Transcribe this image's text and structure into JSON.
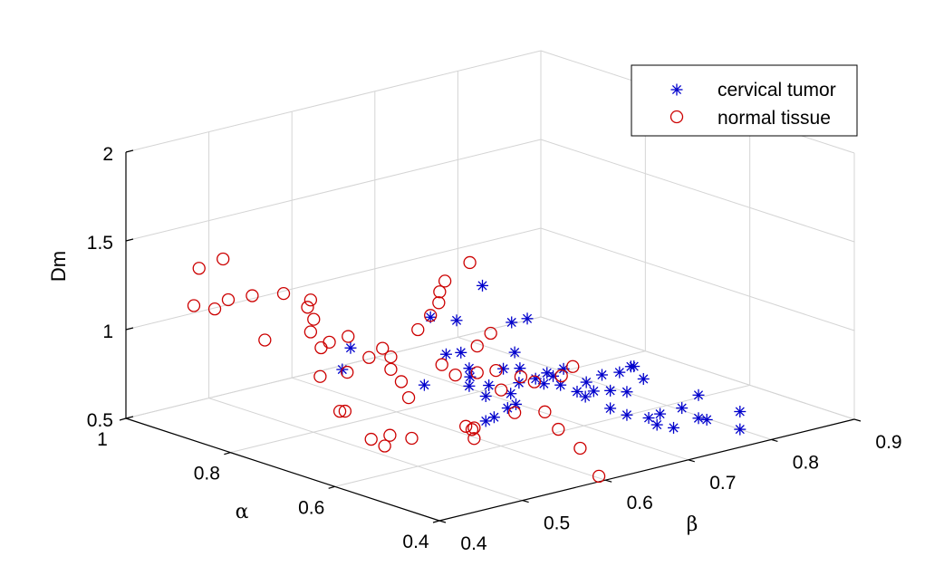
{
  "chart_data": {
    "type": "scatter",
    "title": "",
    "axes": {
      "x": {
        "label": "β",
        "lim": [
          0.4,
          0.9
        ],
        "ticks": [
          "0.4",
          "0.5",
          "0.6",
          "0.7",
          "0.8",
          "0.9"
        ]
      },
      "y": {
        "label": "α",
        "lim": [
          0.4,
          1.0
        ],
        "ticks": [
          "0.4",
          "0.6",
          "0.8",
          "1"
        ]
      },
      "z": {
        "label": "Dm",
        "lim": [
          0.5,
          2.0
        ],
        "ticks": [
          "0.5",
          "1",
          "1.5",
          "2"
        ]
      }
    },
    "grid": true,
    "legend_position": "top-right",
    "series": [
      {
        "name": "cervical tumor",
        "marker": "asterisk",
        "color": "#0000cc",
        "points": [
          [
            0.49,
            0.53,
            1.21
          ],
          [
            0.47,
            0.47,
            1.3
          ],
          [
            0.55,
            0.47,
            1.4
          ],
          [
            0.49,
            0.51,
            1.42
          ],
          [
            0.48,
            0.47,
            1.2
          ],
          [
            0.48,
            0.47,
            1.1
          ],
          [
            0.5,
            0.5,
            1.1
          ],
          [
            0.5,
            0.47,
            1.02
          ],
          [
            0.51,
            0.48,
            1.06
          ],
          [
            0.5,
            0.47,
            0.88
          ],
          [
            0.51,
            0.47,
            0.89
          ],
          [
            0.52,
            0.46,
            0.94
          ],
          [
            0.53,
            0.46,
            0.95
          ],
          [
            0.53,
            0.47,
            1.0
          ],
          [
            0.54,
            0.47,
            1.05
          ],
          [
            0.56,
            0.47,
            1.05
          ],
          [
            0.57,
            0.47,
            1.01
          ],
          [
            0.58,
            0.48,
            1.05
          ],
          [
            0.6,
            0.48,
            1.05
          ],
          [
            0.59,
            0.47,
            0.98
          ],
          [
            0.61,
            0.47,
            0.92
          ],
          [
            0.62,
            0.47,
            0.88
          ],
          [
            0.63,
            0.47,
            0.9
          ],
          [
            0.64,
            0.47,
            0.98
          ],
          [
            0.65,
            0.47,
            0.88
          ],
          [
            0.67,
            0.47,
            0.85
          ],
          [
            0.69,
            0.47,
            0.9
          ],
          [
            0.65,
            0.47,
            0.78
          ],
          [
            0.67,
            0.47,
            0.72
          ],
          [
            0.69,
            0.46,
            0.69
          ],
          [
            0.71,
            0.47,
            0.68
          ],
          [
            0.7,
            0.46,
            0.64
          ],
          [
            0.72,
            0.46,
            0.6
          ],
          [
            0.73,
            0.46,
            0.7
          ],
          [
            0.75,
            0.46,
            0.75
          ],
          [
            0.75,
            0.46,
            0.62
          ],
          [
            0.76,
            0.46,
            0.6
          ],
          [
            0.8,
            0.46,
            0.6
          ],
          [
            0.8,
            0.46,
            0.5
          ],
          [
            0.68,
            0.5,
            0.92
          ],
          [
            0.7,
            0.51,
            0.92
          ],
          [
            0.71,
            0.52,
            0.9
          ],
          [
            0.64,
            0.5,
            0.91
          ],
          [
            0.6,
            0.5,
            0.99
          ],
          [
            0.56,
            0.5,
            1.08
          ],
          [
            0.54,
            0.5,
            1.1
          ],
          [
            0.56,
            0.51,
            1.16
          ],
          [
            0.55,
            0.5,
            1.35
          ],
          [
            0.54,
            0.54,
            1.53
          ],
          [
            0.49,
            0.56,
            1.39
          ],
          [
            0.4,
            0.57,
            1.31
          ],
          [
            0.39,
            0.57,
            1.2
          ],
          [
            0.47,
            0.54,
            1.05
          ]
        ]
      },
      {
        "name": "normal tissue",
        "marker": "circle",
        "color": "#cc0000",
        "points": [
          [
            0.41,
            0.83,
            1.55
          ],
          [
            0.4,
            0.86,
            1.48
          ],
          [
            0.4,
            0.87,
            1.26
          ],
          [
            0.41,
            0.82,
            1.33
          ],
          [
            0.4,
            0.83,
            1.28
          ],
          [
            0.42,
            0.79,
            1.37
          ],
          [
            0.42,
            0.73,
            1.44
          ],
          [
            0.44,
            0.71,
            1.4
          ],
          [
            0.43,
            0.7,
            1.38
          ],
          [
            0.45,
            0.72,
            1.27
          ],
          [
            0.41,
            0.75,
            1.17
          ],
          [
            0.44,
            0.71,
            1.22
          ],
          [
            0.44,
            0.69,
            1.15
          ],
          [
            0.45,
            0.69,
            1.17
          ],
          [
            0.46,
            0.67,
            1.21
          ],
          [
            0.42,
            0.66,
            1.04
          ],
          [
            0.45,
            0.66,
            0.81
          ],
          [
            0.45,
            0.67,
            0.8
          ],
          [
            0.44,
            0.64,
            1.06
          ],
          [
            0.46,
            0.63,
            1.13
          ],
          [
            0.47,
            0.62,
            1.18
          ],
          [
            0.48,
            0.62,
            1.12
          ],
          [
            0.48,
            0.62,
            1.05
          ],
          [
            0.48,
            0.6,
            1.0
          ],
          [
            0.51,
            0.57,
            1.09
          ],
          [
            0.52,
            0.56,
            1.03
          ],
          [
            0.5,
            0.6,
            1.27
          ],
          [
            0.52,
            0.59,
            1.47
          ],
          [
            0.52,
            0.58,
            1.54
          ],
          [
            0.55,
            0.58,
            1.61
          ],
          [
            0.5,
            0.56,
            1.46
          ],
          [
            0.49,
            0.56,
            1.4
          ],
          [
            0.55,
            0.54,
            1.25
          ],
          [
            0.54,
            0.55,
            1.18
          ],
          [
            0.55,
            0.53,
            1.05
          ],
          [
            0.55,
            0.52,
            0.95
          ],
          [
            0.56,
            0.51,
            0.82
          ],
          [
            0.59,
            0.5,
            0.8
          ],
          [
            0.6,
            0.49,
            0.7
          ],
          [
            0.54,
            0.55,
            1.03
          ],
          [
            0.58,
            0.53,
            0.98
          ],
          [
            0.59,
            0.52,
            0.95
          ],
          [
            0.63,
            0.51,
            1.0
          ],
          [
            0.61,
            0.5,
            0.98
          ],
          [
            0.47,
            0.57,
            0.95
          ],
          [
            0.52,
            0.54,
            0.76
          ],
          [
            0.53,
            0.54,
            0.74
          ],
          [
            0.53,
            0.54,
            0.68
          ],
          [
            0.48,
            0.58,
            0.7
          ],
          [
            0.46,
            0.59,
            0.73
          ],
          [
            0.45,
            0.61,
            0.7
          ],
          [
            0.46,
            0.6,
            0.66
          ],
          [
            0.62,
            0.48,
            0.58
          ],
          [
            0.63,
            0.46,
            0.43
          ],
          [
            0.54,
            0.56,
            0.7
          ]
        ]
      }
    ]
  }
}
